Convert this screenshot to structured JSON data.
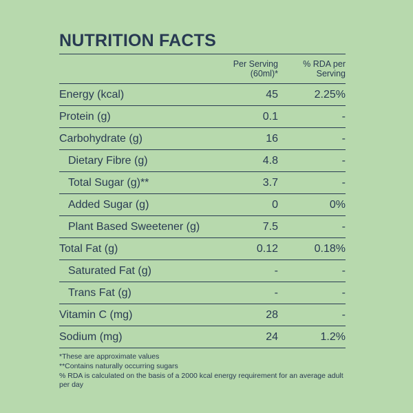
{
  "title": "NUTRITION FACTS",
  "columns": {
    "per_serving_line1": "Per Serving",
    "per_serving_line2": "(60ml)*",
    "rda_line1": "% RDA per",
    "rda_line2": "Serving"
  },
  "rows": [
    {
      "name": "Energy (kcal)",
      "serving": "45",
      "rda": "2.25%",
      "indent": false
    },
    {
      "name": "Protein (g)",
      "serving": "0.1",
      "rda": "-",
      "indent": false
    },
    {
      "name": "Carbohydrate (g)",
      "serving": "16",
      "rda": "-",
      "indent": false
    },
    {
      "name": "Dietary Fibre (g)",
      "serving": "4.8",
      "rda": "-",
      "indent": true
    },
    {
      "name": "Total Sugar (g)**",
      "serving": "3.7",
      "rda": "-",
      "indent": true
    },
    {
      "name": "Added Sugar (g)",
      "serving": "0",
      "rda": "0%",
      "indent": true
    },
    {
      "name": "Plant Based Sweetener (g)",
      "serving": "7.5",
      "rda": "-",
      "indent": true
    },
    {
      "name": "Total Fat (g)",
      "serving": "0.12",
      "rda": "0.18%",
      "indent": false
    },
    {
      "name": "Saturated Fat (g)",
      "serving": "-",
      "rda": "-",
      "indent": true
    },
    {
      "name": "Trans Fat (g)",
      "serving": "-",
      "rda": "-",
      "indent": true
    },
    {
      "name": "Vitamin C (mg)",
      "serving": "28",
      "rda": "-",
      "indent": false
    },
    {
      "name": "Sodium (mg)",
      "serving": "24",
      "rda": "1.2%",
      "indent": false
    }
  ],
  "notes": [
    "*These are approximate values",
    "**Contains naturally occurring sugars",
    "% RDA is calculated on the basis of a 2000 kcal energy requirement for an average adult per day"
  ]
}
